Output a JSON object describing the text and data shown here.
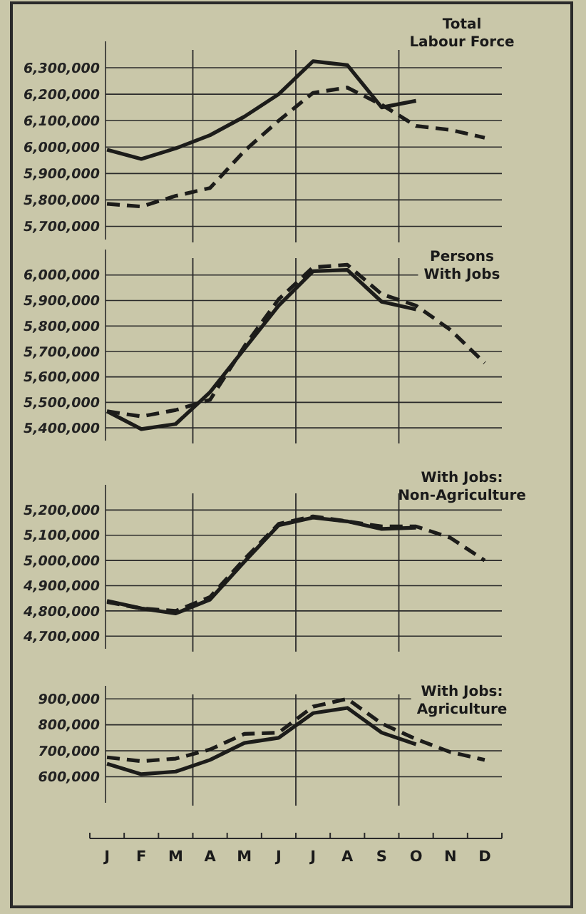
{
  "chart_data": [
    {
      "type": "line",
      "title": "Total\nLabour Force",
      "categories": [
        null,
        null,
        null,
        null,
        null,
        null,
        null,
        null,
        null,
        null,
        null,
        null
      ],
      "ylim": [
        5650000,
        6400000
      ],
      "yticks": [
        {
          "value": 5700000,
          "label": "5,700,000"
        },
        {
          "value": 5800000,
          "label": "5,800,000"
        },
        {
          "value": 5900000,
          "label": "5,900,000"
        },
        {
          "value": 6000000,
          "label": "6,000,000"
        },
        {
          "value": 6100000,
          "label": "6,100,000"
        },
        {
          "value": 6200000,
          "label": "6,200,000"
        },
        {
          "value": 6300000,
          "label": "6,300,000"
        }
      ],
      "grid": "y",
      "tick_labels": "y",
      "series": [
        {
          "color": "#1c1c1a",
          "line_style": "solid",
          "values": [
            5990000,
            5955000,
            5995000,
            6045000,
            6115000,
            6200000,
            6325000,
            6310000,
            6150000,
            6175000,
            null,
            null
          ]
        },
        {
          "color": "#1c1c1a",
          "line_style": "dashed",
          "values": [
            5785000,
            5775000,
            5815000,
            5845000,
            5985000,
            6100000,
            6205000,
            6225000,
            6160000,
            6080000,
            6065000,
            6035000
          ]
        }
      ]
    },
    {
      "type": "line",
      "title": "Persons\nWith Jobs",
      "categories": [
        null,
        null,
        null,
        null,
        null,
        null,
        null,
        null,
        null,
        null,
        null,
        null
      ],
      "ylim": [
        5350000,
        6100000
      ],
      "yticks": [
        {
          "value": 5400000,
          "label": "5,400,000"
        },
        {
          "value": 5500000,
          "label": "5,500,000"
        },
        {
          "value": 5600000,
          "label": "5,600,000"
        },
        {
          "value": 5700000,
          "label": "5,700,000"
        },
        {
          "value": 5800000,
          "label": "5,800,000"
        },
        {
          "value": 5900000,
          "label": "5,900,000"
        },
        {
          "value": 6000000,
          "label": "6,000,000"
        }
      ],
      "grid": "y",
      "tick_labels": "y",
      "series": [
        {
          "color": "#1c1c1a",
          "line_style": "solid",
          "values": [
            5465000,
            5395000,
            5415000,
            5540000,
            5710000,
            5880000,
            6015000,
            6020000,
            5895000,
            5865000,
            null,
            null
          ]
        },
        {
          "color": "#1c1c1a",
          "line_style": "dashed",
          "values": [
            5465000,
            5445000,
            5470000,
            5510000,
            5720000,
            5905000,
            6030000,
            6040000,
            5925000,
            5880000,
            5785000,
            5655000
          ]
        }
      ]
    },
    {
      "type": "line",
      "title": "With Jobs:\nNon-Agriculture",
      "categories": [
        null,
        null,
        null,
        null,
        null,
        null,
        null,
        null,
        null,
        null,
        null,
        null
      ],
      "ylim": [
        4650000,
        5300000
      ],
      "yticks": [
        {
          "value": 4700000,
          "label": "4,700,000"
        },
        {
          "value": 4800000,
          "label": "4,800,000"
        },
        {
          "value": 4900000,
          "label": "4,900,000"
        },
        {
          "value": 5000000,
          "label": "5,000,000"
        },
        {
          "value": 5100000,
          "label": "5,100,000"
        },
        {
          "value": 5200000,
          "label": "5,200,000"
        }
      ],
      "grid": "y",
      "tick_labels": "y",
      "series": [
        {
          "color": "#1c1c1a",
          "line_style": "solid",
          "values": [
            4840000,
            4810000,
            4790000,
            4845000,
            4995000,
            5140000,
            5170000,
            5155000,
            5125000,
            5130000,
            null,
            null
          ]
        },
        {
          "color": "#1c1c1a",
          "line_style": "dashed",
          "values": [
            4835000,
            4810000,
            4800000,
            4855000,
            5005000,
            5145000,
            5175000,
            5155000,
            5135000,
            5135000,
            5090000,
            5000000
          ]
        }
      ]
    },
    {
      "type": "line",
      "title": "With Jobs:\nAgriculture",
      "categories": [
        "J",
        "F",
        "M",
        "A",
        "M",
        "J",
        "J",
        "A",
        "S",
        "O",
        "N",
        "D"
      ],
      "ylim": [
        500000,
        950000
      ],
      "yticks": [
        {
          "value": 600000,
          "label": "600,000"
        },
        {
          "value": 700000,
          "label": "700,000"
        },
        {
          "value": 800000,
          "label": "800,000"
        },
        {
          "value": 900000,
          "label": "900,000"
        }
      ],
      "grid": "y",
      "series": [
        {
          "color": "#1c1c1a",
          "line_style": "solid",
          "values": [
            650000,
            610000,
            620000,
            665000,
            730000,
            750000,
            845000,
            865000,
            770000,
            725000,
            null,
            null
          ]
        },
        {
          "color": "#1c1c1a",
          "line_style": "dashed",
          "values": [
            675000,
            660000,
            670000,
            705000,
            765000,
            770000,
            870000,
            900000,
            805000,
            745000,
            695000,
            665000
          ]
        }
      ]
    }
  ]
}
